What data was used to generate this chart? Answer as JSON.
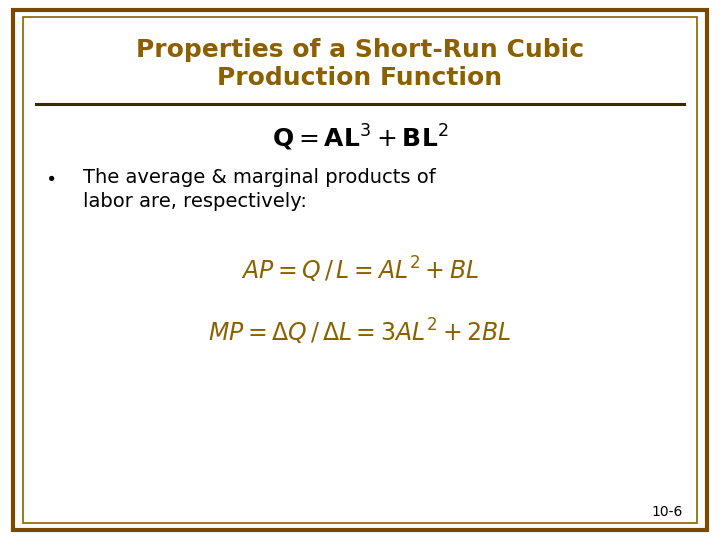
{
  "title_line1": "Properties of a Short-Run Cubic",
  "title_line2": "Production Function",
  "title_color": "#8B6000",
  "background_color": "#FFFFFF",
  "border_color_outer": "#7B4A00",
  "border_color_inner": "#8B6000",
  "formula_main_color": "#000000",
  "formula_color": "#8B6000",
  "bullet_color": "#000000",
  "slide_number": "10-6",
  "divider_color": "#3C2800"
}
